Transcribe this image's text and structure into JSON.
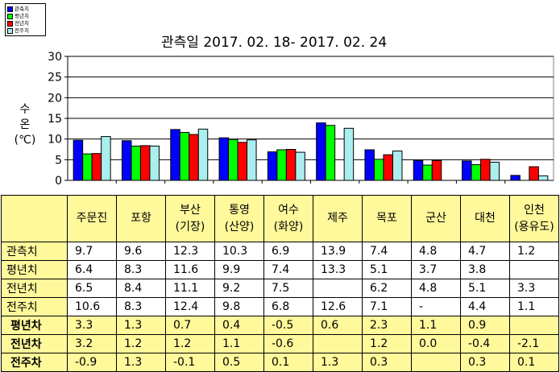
{
  "chart_data": {
    "type": "bar",
    "title": "관측일 2017. 02. 18- 2017. 02. 24",
    "ylabel": [
      "수",
      "온",
      "(℃)"
    ],
    "ylim": [
      0,
      30
    ],
    "yticks": [
      "0",
      "5",
      "10",
      "15",
      "20",
      "25",
      "30"
    ],
    "grid": true,
    "legend_position": "top-left",
    "categories": [
      [
        "주문진"
      ],
      [
        "포항"
      ],
      [
        "부산",
        "(기장)"
      ],
      [
        "통영",
        "(산양)"
      ],
      [
        "여수",
        "(화양)"
      ],
      [
        "제주"
      ],
      [
        "목포"
      ],
      [
        "군산"
      ],
      [
        "대천"
      ],
      [
        "인천",
        "(용유도)"
      ]
    ],
    "series": [
      {
        "name": "관측치",
        "color": "#0000ff",
        "values": [
          9.7,
          9.6,
          12.3,
          10.3,
          6.9,
          13.9,
          7.4,
          4.8,
          4.7,
          1.2
        ]
      },
      {
        "name": "평년치",
        "color": "#00ff00",
        "values": [
          6.4,
          8.3,
          11.6,
          9.9,
          7.4,
          13.3,
          5.1,
          3.7,
          3.8,
          null
        ]
      },
      {
        "name": "전년치",
        "color": "#ff0000",
        "values": [
          6.5,
          8.4,
          11.1,
          9.2,
          7.5,
          null,
          6.2,
          4.8,
          5.1,
          3.3
        ]
      },
      {
        "name": "전주치",
        "color": "#aaeeee",
        "values": [
          10.6,
          8.3,
          12.4,
          9.8,
          6.8,
          12.6,
          7.1,
          null,
          4.4,
          1.1
        ]
      }
    ]
  },
  "legend": {
    "items": [
      {
        "label": "관측치",
        "color": "#0000ff"
      },
      {
        "label": "평년치",
        "color": "#00ff00"
      },
      {
        "label": "전년치",
        "color": "#ff0000"
      },
      {
        "label": "전주치",
        "color": "#aaeeee"
      }
    ]
  },
  "table": {
    "rows": [
      {
        "label": "관측치",
        "kind": "norm",
        "cells": [
          "9.7",
          "9.6",
          "12.3",
          "10.3",
          "6.9",
          "13.9",
          "7.4",
          "4.8",
          "4.7",
          "1.2"
        ]
      },
      {
        "label": "평년치",
        "kind": "norm",
        "cells": [
          "6.4",
          "8.3",
          "11.6",
          "9.9",
          "7.4",
          "13.3",
          "5.1",
          "3.7",
          "3.8",
          ""
        ]
      },
      {
        "label": "전년치",
        "kind": "norm",
        "cells": [
          "6.5",
          "8.4",
          "11.1",
          "9.2",
          "7.5",
          "",
          "6.2",
          "4.8",
          "5.1",
          "3.3"
        ]
      },
      {
        "label": "전주치",
        "kind": "norm",
        "cells": [
          "10.6",
          "8.3",
          "12.4",
          "9.8",
          "6.8",
          "12.6",
          "7.1",
          "-",
          "4.4",
          "1.1"
        ]
      },
      {
        "label": "평년차",
        "kind": "diff",
        "cells": [
          "3.3",
          "1.3",
          "0.7",
          "0.4",
          "-0.5",
          "0.6",
          "2.3",
          "1.1",
          "0.9",
          ""
        ]
      },
      {
        "label": "전년차",
        "kind": "diff",
        "cells": [
          "3.2",
          "1.2",
          "1.2",
          "1.1",
          "-0.6",
          "",
          "1.2",
          "0.0",
          "-0.4",
          "-2.1"
        ]
      },
      {
        "label": "전주차",
        "kind": "diff",
        "cells": [
          "-0.9",
          "1.3",
          "-0.1",
          "0.5",
          "0.1",
          "1.3",
          "0.3",
          "",
          "0.3",
          "0.1"
        ]
      }
    ]
  }
}
